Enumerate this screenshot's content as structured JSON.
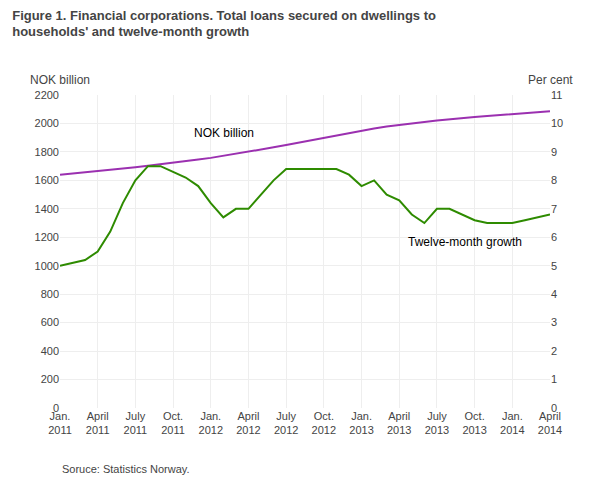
{
  "chart_data": {
    "type": "line",
    "title": "Figure 1. Financial corporations. Total loans secured on dwellings to\nhouseholds' and twelve-month growth",
    "source": "Soruce: Statistics Norway.",
    "ylabel": "NOK billion",
    "y2label": "Per cent",
    "categories": [
      "Jan.\n2011",
      null,
      null,
      "April\n2011",
      null,
      null,
      "July\n2011",
      null,
      null,
      "Oct.\n2011",
      null,
      null,
      "Jan.\n2012",
      null,
      null,
      "April\n2012",
      null,
      null,
      "July\n2012",
      null,
      null,
      "Oct.\n2012",
      null,
      null,
      "Jan.\n2013",
      null,
      null,
      "April\n2013",
      null,
      null,
      "July\n2013",
      null,
      null,
      "Oct.\n2013",
      null,
      null,
      "Jan.\n2014",
      null,
      null,
      "April\n2014"
    ],
    "series": [
      {
        "color": "#9B30B0",
        "values": [
          1640,
          1648,
          1656,
          1664,
          1672,
          1682,
          1692,
          1702,
          1712,
          1722,
          1734,
          1746,
          1758,
          1772,
          1786,
          1800,
          1816,
          1832,
          1848,
          1865,
          1882,
          1900,
          1918,
          1935,
          1950,
          1965,
          1978,
          1990,
          2000,
          2010,
          2020,
          2030,
          2038,
          2046,
          2053,
          2060,
          2066,
          2072,
          2078,
          2085
        ]
      },
      {
        "color": "#2E8B00",
        "axis": "y2",
        "values": [
          5.0,
          5.1,
          5.2,
          5.5,
          6.2,
          7.2,
          8.0,
          8.5,
          8.5,
          8.3,
          8.1,
          7.8,
          7.2,
          6.7,
          7.0,
          7.0,
          7.5,
          8.0,
          8.4,
          8.4,
          8.4,
          8.4,
          8.4,
          8.2,
          7.8,
          8.0,
          7.5,
          7.3,
          6.8,
          6.5,
          7.0,
          7.0,
          6.8,
          6.6,
          6.5,
          6.5,
          6.5,
          6.6,
          6.7,
          6.8
        ]
      }
    ],
    "annotations": [
      {
        "text": "NOK billion",
        "x": 10.5,
        "y": 1870
      },
      {
        "text": "Twelve-month growth",
        "x": 27.5,
        "y": 6.15,
        "axis": "y2"
      }
    ],
    "ylim": [
      0,
      2200
    ],
    "yticks": [
      0,
      200,
      400,
      600,
      800,
      1000,
      1200,
      1400,
      1600,
      1800,
      2000,
      2200
    ],
    "y2lim": [
      0,
      11
    ],
    "y2ticks": [
      0,
      1,
      2,
      3,
      4,
      5,
      6,
      7,
      8,
      9,
      10,
      11
    ],
    "grid": true
  }
}
